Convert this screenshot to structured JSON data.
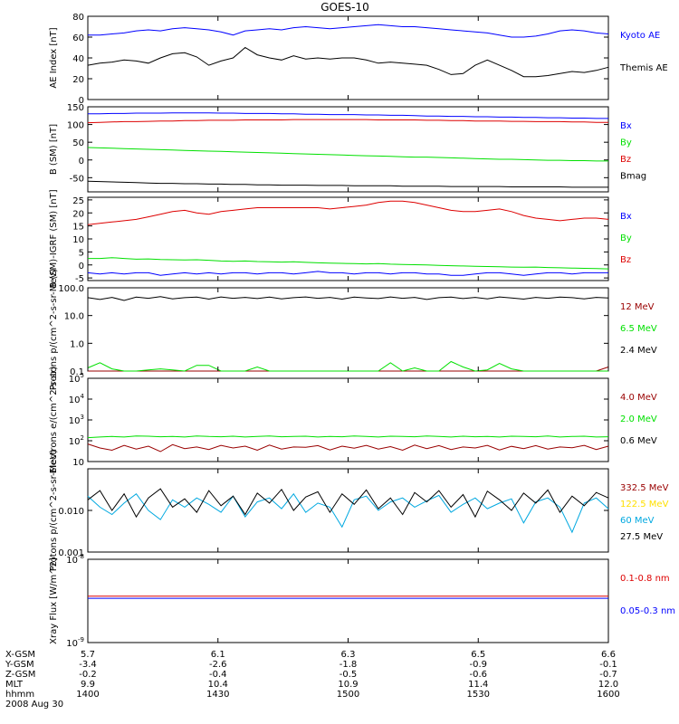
{
  "title": "GOES-10",
  "colors": {
    "black": "#000000",
    "blue": "#0000ff",
    "red": "#dd0000",
    "green": "#00e000",
    "dark_red": "#990000",
    "cyan": "#00a8e0",
    "yellow": "#ffe000"
  },
  "chart_data": [
    {
      "type": "line",
      "ylabel": "AE Index [nT]",
      "ylim": [
        0,
        80
      ],
      "yticks": [
        "0",
        "20",
        "40",
        "60",
        "80"
      ],
      "series": [
        {
          "name": "Kyoto AE",
          "color": "blue",
          "values": [
            62,
            62,
            63,
            64,
            66,
            67,
            66,
            68,
            69,
            68,
            67,
            65,
            62,
            66,
            67,
            68,
            67,
            69,
            70,
            69,
            68,
            69,
            70,
            71,
            72,
            71,
            70,
            70,
            69,
            68,
            67,
            66,
            65,
            64,
            62,
            60,
            60,
            61,
            63,
            66,
            67,
            66,
            64,
            63
          ]
        },
        {
          "name": "Themis AE",
          "color": "black",
          "values": [
            33,
            35,
            36,
            38,
            37,
            35,
            40,
            44,
            45,
            41,
            33,
            37,
            40,
            50,
            43,
            40,
            38,
            42,
            39,
            40,
            39,
            40,
            40,
            38,
            35,
            36,
            35,
            34,
            33,
            29,
            24,
            25,
            33,
            38,
            33,
            28,
            22,
            22,
            23,
            25,
            27,
            26,
            28,
            31
          ]
        }
      ]
    },
    {
      "type": "line",
      "ylabel": "B (SM) [nT]",
      "ylim": [
        -90,
        150
      ],
      "yticks": [
        "-50",
        "0",
        "50",
        "100",
        "150"
      ],
      "series": [
        {
          "name": "Bx",
          "color": "blue",
          "values": [
            130,
            130,
            131,
            131,
            132,
            132,
            132,
            133,
            133,
            133,
            133,
            132,
            132,
            131,
            131,
            131,
            130,
            130,
            129,
            129,
            128,
            128,
            128,
            127,
            127,
            126,
            126,
            125,
            124,
            124,
            123,
            123,
            122,
            122,
            121,
            121,
            120,
            120,
            119,
            119,
            118,
            118,
            117,
            117
          ]
        },
        {
          "name": "By",
          "color": "green",
          "values": [
            35,
            34,
            33,
            32,
            31,
            30,
            29,
            28,
            27,
            26,
            25,
            24,
            23,
            22,
            21,
            20,
            19,
            18,
            17,
            16,
            15,
            14,
            13,
            12,
            11,
            10,
            9,
            8,
            8,
            7,
            6,
            5,
            4,
            3,
            2,
            2,
            1,
            0,
            -1,
            -1,
            -2,
            -2,
            -3,
            -3
          ]
        },
        {
          "name": "Bz",
          "color": "red",
          "values": [
            105,
            106,
            107,
            108,
            108,
            109,
            110,
            110,
            111,
            111,
            112,
            112,
            112,
            113,
            113,
            113,
            113,
            114,
            114,
            114,
            114,
            114,
            114,
            114,
            113,
            113,
            113,
            113,
            112,
            112,
            111,
            111,
            110,
            110,
            110,
            109,
            109,
            108,
            108,
            108,
            107,
            107,
            106,
            106
          ]
        },
        {
          "name": "Bmag",
          "color": "black",
          "values": [
            -60,
            -61,
            -62,
            -63,
            -64,
            -65,
            -66,
            -66,
            -67,
            -67,
            -68,
            -68,
            -69,
            -69,
            -70,
            -70,
            -71,
            -71,
            -71,
            -72,
            -72,
            -72,
            -73,
            -73,
            -73,
            -73,
            -74,
            -74,
            -74,
            -74,
            -75,
            -75,
            -75,
            -75,
            -75,
            -76,
            -76,
            -76,
            -76,
            -76,
            -77,
            -77,
            -77,
            -77
          ]
        }
      ]
    },
    {
      "type": "line",
      "ylabel": "B (SM)-IGRF (SM) [nT]",
      "ylim": [
        -6,
        26
      ],
      "yticks": [
        "-5",
        "0",
        "5",
        "10",
        "15",
        "20",
        "25"
      ],
      "series": [
        {
          "name": "Bx",
          "color": "blue",
          "values": [
            -3,
            -3.5,
            -3,
            -3.5,
            -3,
            -3,
            -4,
            -3.5,
            -3,
            -3.5,
            -3,
            -3.5,
            -3,
            -3,
            -3.5,
            -3,
            -3,
            -3.5,
            -3,
            -2.5,
            -3,
            -3,
            -3.5,
            -3,
            -3,
            -3.5,
            -3,
            -3,
            -3.5,
            -3.5,
            -4,
            -4,
            -3.5,
            -3,
            -3,
            -3.5,
            -4,
            -3.5,
            -3,
            -3,
            -3.5,
            -3,
            -3,
            -3
          ]
        },
        {
          "name": "By",
          "color": "green",
          "values": [
            2.5,
            2.5,
            2.8,
            2.5,
            2.2,
            2.3,
            2.1,
            2,
            1.9,
            2,
            1.8,
            1.5,
            1.4,
            1.5,
            1.3,
            1.2,
            1.1,
            1.2,
            1,
            0.8,
            0.7,
            0.6,
            0.5,
            0.4,
            0.5,
            0.3,
            0.2,
            0.1,
            0,
            -0.2,
            -0.3,
            -0.4,
            -0.5,
            -0.6,
            -0.7,
            -0.8,
            -0.9,
            -0.8,
            -1,
            -1.1,
            -1.2,
            -1.3,
            -1.4,
            -1.5
          ]
        },
        {
          "name": "Bz",
          "color": "red",
          "values": [
            15.5,
            16,
            16.5,
            17,
            17.5,
            18.5,
            19.5,
            20.5,
            21,
            20,
            19.5,
            20.5,
            21,
            21.5,
            22,
            22,
            22,
            22,
            22,
            22,
            21.5,
            22,
            22.5,
            23,
            24,
            24.5,
            24.5,
            24,
            23,
            22,
            21,
            20.5,
            20.5,
            21,
            21.5,
            20.5,
            19,
            18,
            17.5,
            17,
            17.5,
            18,
            18,
            17.5
          ]
        }
      ]
    },
    {
      "type": "line",
      "ylabel": "Protons p/(cm^2-s-sr-MeV)",
      "yscale": "log",
      "ylim": [
        0.1,
        100
      ],
      "yticks": [
        "0.1",
        "1.0",
        "10.0",
        "100.0"
      ],
      "series": [
        {
          "name": "12 MeV",
          "color": "dark_red",
          "values": [
            0.1,
            0.1,
            0.1,
            0.1,
            0.1,
            0.1,
            0.1,
            0.1,
            0.1,
            0.1,
            0.1,
            0.1,
            0.1,
            0.1,
            0.1,
            0.1,
            0.1,
            0.1,
            0.1,
            0.1,
            0.1,
            0.1,
            0.1,
            0.1,
            0.1,
            0.1,
            0.1,
            0.1,
            0.1,
            0.1,
            0.1,
            0.1,
            0.1,
            0.1,
            0.1,
            0.1,
            0.1,
            0.1,
            0.1,
            0.1,
            0.1,
            0.1,
            0.1,
            0.14
          ]
        },
        {
          "name": "6.5 MeV",
          "color": "green",
          "values": [
            0.13,
            0.2,
            0.12,
            0.1,
            0.1,
            0.11,
            0.12,
            0.11,
            0.1,
            0.16,
            0.16,
            0.1,
            0.1,
            0.1,
            0.14,
            0.1,
            0.1,
            0.1,
            0.1,
            0.1,
            0.1,
            0.1,
            0.1,
            0.1,
            0.1,
            0.2,
            0.1,
            0.13,
            0.1,
            0.1,
            0.22,
            0.14,
            0.1,
            0.11,
            0.19,
            0.12,
            0.1,
            0.1,
            0.1,
            0.1,
            0.1,
            0.1,
            0.1,
            0.1
          ]
        },
        {
          "name": "2.4 MeV",
          "color": "black",
          "values": [
            44,
            38,
            45,
            35,
            46,
            42,
            48,
            40,
            44,
            46,
            39,
            47,
            42,
            45,
            41,
            46,
            40,
            44,
            47,
            42,
            45,
            39,
            46,
            43,
            41,
            47,
            42,
            45,
            38,
            44,
            46,
            41,
            45,
            40,
            47,
            43,
            39,
            45,
            42,
            46,
            44,
            40,
            45,
            43
          ]
        }
      ]
    },
    {
      "type": "line",
      "ylabel": "Electrons e/(cm^2-s-sr)",
      "yscale": "log",
      "ylim": [
        10,
        100000
      ],
      "yticks": [
        "10",
        "10^2",
        "10^3",
        "10^4",
        "10^5"
      ],
      "series": [
        {
          "name": "4.0 MeV",
          "color": "dark_red",
          "values": [
            70,
            45,
            35,
            60,
            40,
            55,
            30,
            65,
            42,
            50,
            38,
            60,
            45,
            55,
            35,
            62,
            40,
            50,
            48,
            58,
            36,
            55,
            44,
            60,
            40,
            52,
            35,
            62,
            42,
            58,
            38,
            50,
            45,
            60,
            36,
            54,
            42,
            58,
            40,
            50,
            46,
            60,
            38,
            55
          ]
        },
        {
          "name": "2.0 MeV",
          "color": "green",
          "values": [
            140,
            150,
            160,
            150,
            170,
            165,
            155,
            160,
            150,
            170,
            160,
            155,
            165,
            150,
            160,
            170,
            155,
            160,
            165,
            150,
            160,
            155,
            170,
            160,
            150,
            165,
            160,
            155,
            170,
            160,
            150,
            165,
            155,
            160,
            150,
            165,
            160,
            155,
            170,
            150,
            160,
            165,
            150,
            155
          ]
        },
        {
          "name": "0.6 MeV",
          "color": "black",
          "values": [
            100000,
            100000,
            100000,
            100000,
            100000,
            100000,
            100000,
            100000,
            100000,
            100000,
            100000,
            100000,
            100000,
            100000,
            100000,
            100000,
            100000,
            100000,
            100000,
            100000,
            100000,
            100000,
            100000,
            100000,
            100000,
            100000,
            100000,
            100000,
            100000,
            100000,
            100000,
            100000,
            100000,
            100000,
            100000,
            100000,
            100000,
            100000,
            100000,
            100000,
            100000,
            100000,
            100000,
            100000
          ]
        }
      ]
    },
    {
      "type": "line",
      "ylabel": "Protons p/(cm^2-s-sr-MeV)",
      "yscale": "log",
      "ylim": [
        0.001,
        0.1
      ],
      "yticks": [
        "0.001",
        "0.010"
      ],
      "series": [
        {
          "name": "332.5 MeV",
          "color": "dark_red",
          "values": []
        },
        {
          "name": "122.5 MeV",
          "color": "yellow",
          "values": []
        },
        {
          "name": "60 MeV",
          "color": "cyan",
          "values": [
            0.022,
            0.012,
            0.008,
            0.015,
            0.025,
            0.01,
            0.006,
            0.018,
            0.012,
            0.02,
            0.014,
            0.009,
            0.022,
            0.007,
            0.016,
            0.02,
            0.011,
            0.025,
            0.009,
            0.015,
            0.012,
            0.004,
            0.018,
            0.022,
            0.01,
            0.016,
            0.02,
            0.012,
            0.017,
            0.023,
            0.009,
            0.014,
            0.02,
            0.011,
            0.015,
            0.019,
            0.005,
            0.016,
            0.02,
            0.012,
            0.003,
            0.015,
            0.02,
            0.011
          ]
        },
        {
          "name": "27.5 MeV",
          "color": "black",
          "values": [
            0.018,
            0.03,
            0.01,
            0.025,
            0.007,
            0.02,
            0.033,
            0.012,
            0.019,
            0.009,
            0.03,
            0.013,
            0.022,
            0.008,
            0.026,
            0.015,
            0.032,
            0.01,
            0.021,
            0.028,
            0.009,
            0.025,
            0.014,
            0.031,
            0.011,
            0.02,
            0.008,
            0.027,
            0.016,
            0.03,
            0.012,
            0.024,
            0.007,
            0.029,
            0.018,
            0.01,
            0.026,
            0.015,
            0.031,
            0.009,
            0.022,
            0.013,
            0.027,
            0.02
          ]
        }
      ]
    },
    {
      "type": "line",
      "ylabel": "Xray Flux [W/m^2]",
      "yscale": "log",
      "ylim": [
        1e-09,
        1e-08
      ],
      "yticks": [
        "10^-9",
        "10^-8"
      ],
      "series": [
        {
          "name": "0.1-0.8 nm",
          "color": "red",
          "values": [
            3.6e-09,
            3.6e-09,
            3.6e-09,
            3.6e-09,
            3.6e-09,
            3.6e-09,
            3.6e-09,
            3.6e-09,
            3.6e-09,
            3.6e-09,
            3.6e-09,
            3.6e-09,
            3.6e-09,
            3.6e-09,
            3.6e-09,
            3.6e-09,
            3.6e-09,
            3.6e-09,
            3.6e-09,
            3.6e-09,
            3.6e-09,
            3.6e-09,
            3.6e-09,
            3.6e-09,
            3.6e-09,
            3.6e-09,
            3.6e-09,
            3.6e-09,
            3.6e-09,
            3.6e-09,
            3.6e-09,
            3.6e-09,
            3.6e-09,
            3.6e-09,
            3.6e-09,
            3.6e-09,
            3.6e-09,
            3.6e-09,
            3.6e-09,
            3.6e-09,
            3.6e-09,
            3.6e-09,
            3.6e-09,
            3.6e-09
          ]
        },
        {
          "name": "0.05-0.3 nm",
          "color": "blue",
          "values": [
            3.4e-09,
            3.4e-09,
            3.4e-09,
            3.4e-09,
            3.4e-09,
            3.4e-09,
            3.4e-09,
            3.4e-09,
            3.4e-09,
            3.4e-09,
            3.4e-09,
            3.4e-09,
            3.4e-09,
            3.4e-09,
            3.4e-09,
            3.4e-09,
            3.4e-09,
            3.4e-09,
            3.4e-09,
            3.4e-09,
            3.4e-09,
            3.4e-09,
            3.4e-09,
            3.4e-09,
            3.4e-09,
            3.4e-09,
            3.4e-09,
            3.4e-09,
            3.4e-09,
            3.4e-09,
            3.4e-09,
            3.4e-09,
            3.4e-09,
            3.4e-09,
            3.4e-09,
            3.4e-09,
            3.4e-09,
            3.4e-09,
            3.4e-09,
            3.4e-09,
            3.4e-09,
            3.4e-09,
            3.4e-09,
            3.4e-09
          ]
        }
      ]
    }
  ],
  "x_axis": {
    "labels": [
      "X-GSM",
      "Y-GSM",
      "Z-GSM",
      "MLT",
      "hhmm"
    ],
    "columns": [
      [
        "5.7",
        "-3.4",
        "-0.2",
        "9.9",
        "1400"
      ],
      [
        "6.1",
        "-2.6",
        "-0.4",
        "10.4",
        "1430"
      ],
      [
        "6.3",
        "-1.8",
        "-0.5",
        "10.9",
        "1500"
      ],
      [
        "6.5",
        "-0.9",
        "-0.6",
        "11.4",
        "1530"
      ],
      [
        "6.6",
        "-0.1",
        "-0.7",
        "12.0",
        "1600"
      ]
    ],
    "date": "2008 Aug 30"
  }
}
